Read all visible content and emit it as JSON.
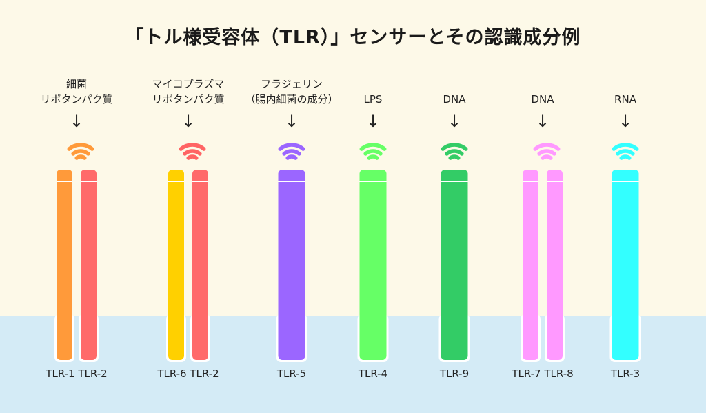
{
  "title": "「トル様受容体（TLR）」センサーとその認識成分例",
  "colors": {
    "background": "#fdf9e8",
    "cell_interior": "#d4ebf6",
    "membrane_outline": "#ffffff"
  },
  "receptors": [
    {
      "ligand_lines": [
        "細菌",
        "リポタンパク質"
      ],
      "tlr_label": "TLR-1 TLR-2",
      "bar_colors": [
        "#ff9a3a",
        "#ff6a6a"
      ],
      "signal_color": "#ff9a3a"
    },
    {
      "ligand_lines": [
        "マイコプラズマ",
        "リポタンパク質"
      ],
      "tlr_label": "TLR-6 TLR-2",
      "bar_colors": [
        "#ffd000",
        "#ff6a6a"
      ],
      "signal_color": "#ff6464"
    },
    {
      "ligand_lines": [
        "フラジェリン",
        "（腸内細菌の成分）"
      ],
      "tlr_label": "TLR-5",
      "bar_colors": [
        "#9b66ff"
      ],
      "signal_color": "#9b66ff"
    },
    {
      "ligand_lines": [
        "LPS"
      ],
      "tlr_label": "TLR-4",
      "bar_colors": [
        "#66ff66"
      ],
      "signal_color": "#66ff66"
    },
    {
      "ligand_lines": [
        "DNA"
      ],
      "tlr_label": "TLR-9",
      "bar_colors": [
        "#33cc66"
      ],
      "signal_color": "#33cc66"
    },
    {
      "ligand_lines": [
        "DNA"
      ],
      "tlr_label": "TLR-7 TLR-8",
      "bar_colors": [
        "#ff99ff",
        "#ff99ff"
      ],
      "signal_color": "#ff99ff"
    },
    {
      "ligand_lines": [
        "RNA"
      ],
      "tlr_label": "TLR-3",
      "bar_colors": [
        "#33ffff"
      ],
      "signal_color": "#33ffff"
    }
  ]
}
